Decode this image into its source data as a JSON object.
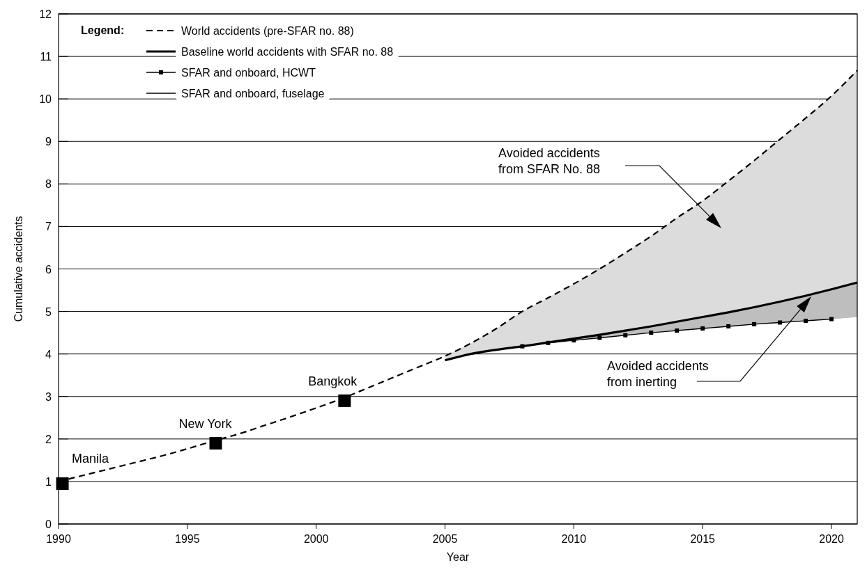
{
  "chart_data": {
    "type": "line",
    "xlabel": "Year",
    "ylabel": "Cumulative accidents",
    "legend_title": "Legend:",
    "xlim": [
      1990,
      2021
    ],
    "xticks": [
      1990,
      1995,
      2000,
      2005,
      2010,
      2015,
      2020
    ],
    "ylim": [
      0,
      12
    ],
    "yticks": [
      0,
      1,
      2,
      3,
      4,
      5,
      6,
      7,
      8,
      9,
      10,
      11,
      12
    ],
    "grid": "y",
    "legend": "top left",
    "series": [
      {
        "name": "World accidents (pre-SFAR no. 88)",
        "color": "#000000",
        "line_style": "dashed",
        "marker": "none",
        "x": [
          1990,
          1991,
          1992,
          1993,
          1994,
          1995,
          1996,
          1997,
          1998,
          1999,
          2000,
          2001,
          2002,
          2003,
          2004,
          2005,
          2006,
          2007,
          2008,
          2009,
          2010,
          2011,
          2012,
          2013,
          2014,
          2015,
          2016,
          2017,
          2018,
          2019,
          2020,
          2021
        ],
        "values": [
          1.0,
          1.15,
          1.3,
          1.45,
          1.6,
          1.77,
          1.95,
          2.12,
          2.32,
          2.52,
          2.73,
          2.95,
          3.2,
          3.45,
          3.7,
          3.95,
          4.25,
          4.6,
          5.0,
          5.32,
          5.65,
          6.0,
          6.38,
          6.77,
          7.2,
          7.6,
          8.07,
          8.55,
          9.05,
          9.55,
          10.07,
          10.67
        ],
        "lower": [
          null,
          null,
          null,
          null,
          null,
          null,
          null,
          null,
          null,
          null,
          null,
          null,
          null,
          null,
          null,
          3.85,
          4.0,
          4.1,
          4.18,
          4.27,
          4.36,
          4.45,
          4.55,
          4.65,
          4.76,
          4.87,
          4.98,
          5.1,
          5.23,
          5.37,
          5.52,
          5.68
        ],
        "upper": [
          null,
          null,
          null,
          null,
          null,
          null,
          null,
          null,
          null,
          null,
          null,
          null,
          null,
          null,
          null,
          3.95,
          4.25,
          4.6,
          5.0,
          5.32,
          5.65,
          6.0,
          6.38,
          6.77,
          7.2,
          7.6,
          8.07,
          8.55,
          9.05,
          9.55,
          10.07,
          10.67
        ]
      },
      {
        "name": "Baseline world accidents with SFAR no. 88",
        "color": "#000000",
        "line_style": "solid",
        "marker": "none",
        "x": [
          2005,
          2006,
          2007,
          2008,
          2009,
          2010,
          2011,
          2012,
          2013,
          2014,
          2015,
          2016,
          2017,
          2018,
          2019,
          2020,
          2021
        ],
        "values": [
          3.85,
          4.0,
          4.1,
          4.18,
          4.27,
          4.36,
          4.45,
          4.55,
          4.65,
          4.76,
          4.87,
          4.98,
          5.1,
          5.23,
          5.37,
          5.52,
          5.68
        ],
        "lower": [
          3.85,
          4.0,
          4.1,
          4.18,
          4.26,
          4.32,
          4.38,
          4.44,
          4.5,
          4.55,
          4.6,
          4.65,
          4.7,
          4.74,
          4.78,
          4.82,
          4.87
        ],
        "upper": [
          3.85,
          4.0,
          4.1,
          4.18,
          4.27,
          4.36,
          4.45,
          4.55,
          4.65,
          4.76,
          4.87,
          4.98,
          5.1,
          5.23,
          5.37,
          5.52,
          5.68
        ]
      },
      {
        "name": "SFAR and onboard, HCWT",
        "color": "#000000",
        "line_style": "solid",
        "marker": "square",
        "x": [
          2008,
          2009,
          2010,
          2011,
          2012,
          2013,
          2014,
          2015,
          2016,
          2017,
          2018,
          2019,
          2020
        ],
        "values": [
          4.18,
          4.26,
          4.32,
          4.38,
          4.44,
          4.5,
          4.55,
          4.6,
          4.65,
          4.7,
          4.74,
          4.78,
          4.82
        ]
      },
      {
        "name": "SFAR and onboard, fuselage",
        "color": "#000000",
        "line_style": "solid",
        "marker": "none"
      },
      {
        "type": "scatter",
        "color": "#000000",
        "marker": "square",
        "x": [
          1990.15,
          1996.1,
          2001.1
        ],
        "values": [
          0.95,
          1.9,
          2.9
        ]
      }
    ],
    "annotations": [
      {
        "text": "Manila",
        "x": 1990.15,
        "y": 0.95
      },
      {
        "text": "New York",
        "x": 1996.1,
        "y": 1.9
      },
      {
        "text": "Bangkok",
        "x": 2001.1,
        "y": 2.9
      },
      "Avoided accidents\nfrom SFAR No. 88",
      "Avoided accidents\nfrom inerting"
    ]
  }
}
